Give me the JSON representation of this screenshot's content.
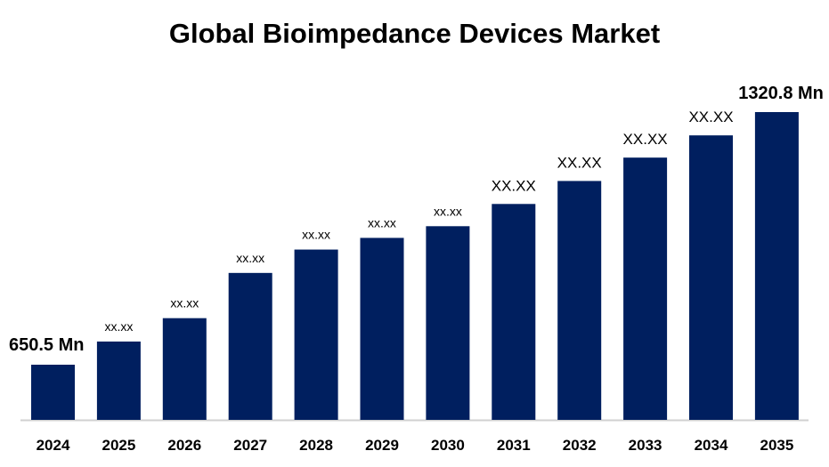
{
  "chart_data": {
    "type": "bar",
    "title": "Global Bioimpedance Devices Market",
    "xlabel": "",
    "ylabel": "",
    "categories": [
      "2024",
      "2025",
      "2026",
      "2027",
      "2028",
      "2029",
      "2030",
      "2031",
      "2032",
      "2033",
      "2034",
      "2035"
    ],
    "values": [
      650.5,
      712,
      774,
      894,
      956,
      987,
      1018,
      1077,
      1138,
      1200,
      1259,
      1320.8
    ],
    "data_labels": [
      "650.5 Mn",
      "xx.xx",
      "xx.xx",
      "xx.xx",
      "xx.xx",
      "xx.xx",
      "xx.xx",
      "XX.XX",
      "XX.XX",
      "XX.XX",
      "XX.XX",
      "1320.8  Mn"
    ],
    "ylim": [
      504,
      1320.8
    ],
    "grid": false,
    "legend": "none",
    "colors": {
      "bar": "#001f5f",
      "axis": "#d0d0d0",
      "text": "#000000"
    }
  }
}
